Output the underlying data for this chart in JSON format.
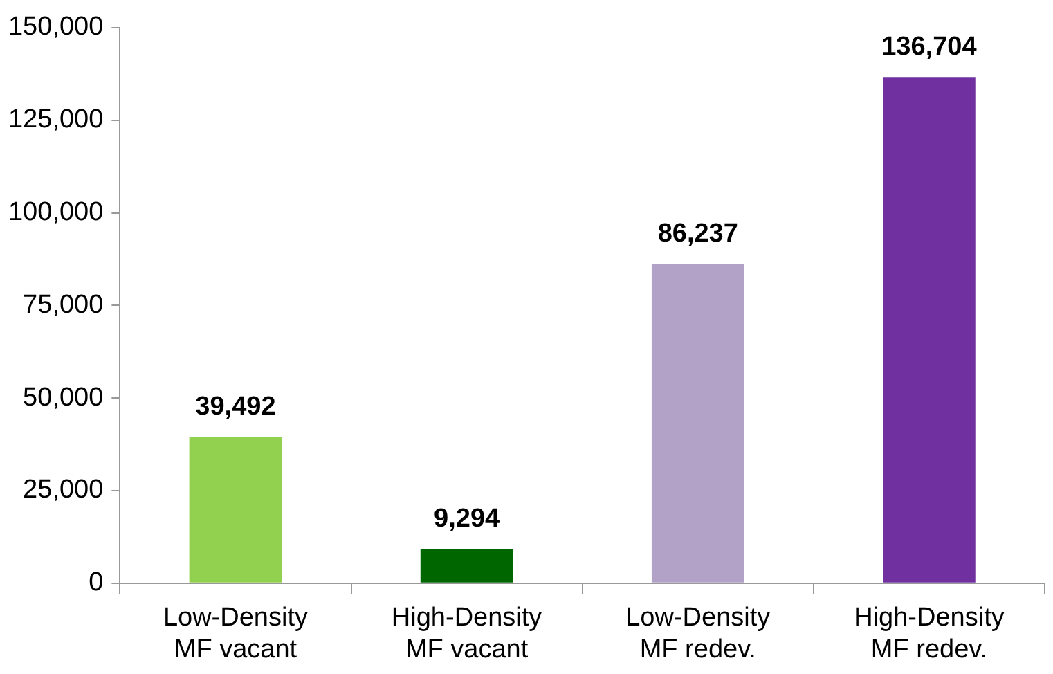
{
  "chart_data": {
    "type": "bar",
    "categories": [
      "Low-Density\nMF vacant",
      "High-Density\nMF vacant",
      "Low-Density\nMF redev.",
      "High-Density\nMF redev."
    ],
    "values": [
      39492,
      9294,
      86237,
      136704
    ],
    "colors": [
      "#92d050",
      "#006600",
      "#b3a2c7",
      "#7030a0"
    ],
    "ylim": [
      0,
      150000
    ],
    "yticks": [
      {
        "value": 0,
        "label": "0"
      },
      {
        "value": 25000,
        "label": "25,000"
      },
      {
        "value": 50000,
        "label": "50,000"
      },
      {
        "value": 75000,
        "label": "75,000"
      },
      {
        "value": 100000,
        "label": "100,000"
      },
      {
        "value": 125000,
        "label": "125,000"
      },
      {
        "value": 150000,
        "label": "150,000"
      }
    ],
    "value_labels": [
      "39,492",
      "9,294",
      "86,237",
      "136,704"
    ],
    "grid": false,
    "legend": false
  }
}
